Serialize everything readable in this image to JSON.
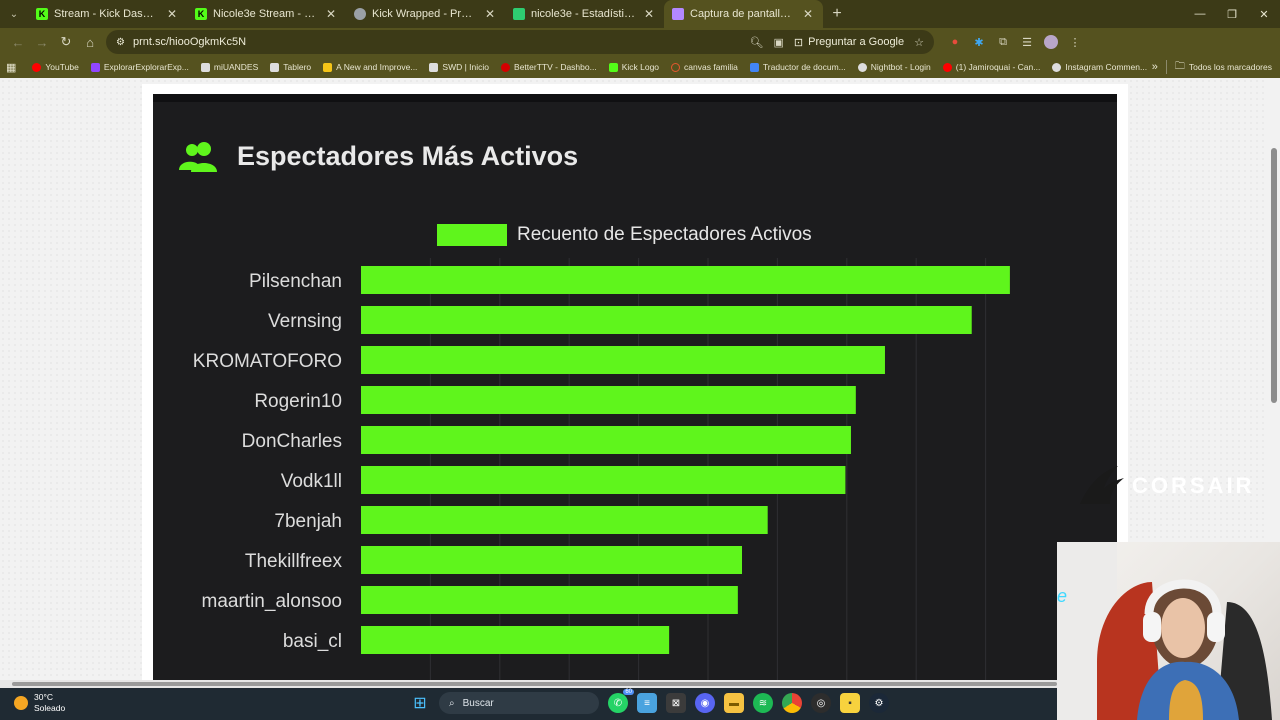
{
  "browser": {
    "tabs": [
      {
        "title": "Stream - Kick Dashboard",
        "favicon_color": "#53fc18",
        "active": false
      },
      {
        "title": "Nicole3e Stream - Watch Live on Kick",
        "favicon_color": "#53fc18",
        "active": false
      },
      {
        "title": "Kick Wrapped - Processing",
        "favicon_color": "#9aa0a6",
        "active": false
      },
      {
        "title": "nicole3e - Estadísticas de Kick",
        "favicon_color": "#2ecc71",
        "active": false
      },
      {
        "title": "Captura de pantalla por Lightshot",
        "favicon_color": "#b388ff",
        "active": true
      }
    ],
    "url": "prnt.sc/hiooOgkmKc5N",
    "ask_google": "Preguntar a Google",
    "bookmarks": [
      {
        "label": "YouTube",
        "color": "#ff0000"
      },
      {
        "label": "ExplorarExplorarExp...",
        "color": "#9146ff"
      },
      {
        "label": "miUANDES",
        "color": "#dddddd"
      },
      {
        "label": "Tablero",
        "color": "#dddddd"
      },
      {
        "label": "A New and Improve...",
        "color": "#f5c518"
      },
      {
        "label": "SWD | Inicio",
        "color": "#dddddd"
      },
      {
        "label": "BetterTTV - Dashbo...",
        "color": "#d50000"
      },
      {
        "label": "Kick Logo",
        "color": "#53fc18"
      },
      {
        "label": "canvas familia",
        "color": "#e4572e"
      },
      {
        "label": "Traductor de docum...",
        "color": "#4285f4"
      },
      {
        "label": "Nightbot - Login",
        "color": "#dddddd"
      },
      {
        "label": "(1) Jamiroquai - Can...",
        "color": "#ff0000"
      },
      {
        "label": "Instagram Commen...",
        "color": "#dddddd"
      }
    ],
    "all_bookmarks": "Todos los marcadores"
  },
  "screenshot": {
    "title": "Espectadores Más Activos"
  },
  "chart_data": {
    "type": "bar",
    "orientation": "horizontal",
    "title": "Espectadores Más Activos",
    "legend": "Recuento de Espectadores Activos",
    "legend_position": "top-center",
    "categories": [
      "Pilsenchan",
      "Vernsing",
      "KROMATOFORO",
      "Rogerin10",
      "DonCharles",
      "Vodk1ll",
      "7benjah",
      "Thekillfreex",
      "maartin_alonsoo",
      "basi_cl"
    ],
    "series": [
      {
        "values": [
          93.5,
          88,
          75.5,
          71.3,
          70.6,
          69.8,
          58.6,
          54.9,
          54.3,
          44.4
        ],
        "color": "#5ff51c"
      }
    ],
    "xlim": [
      0,
      100
    ],
    "grid": true
  },
  "overlay": {
    "brand": "CORSAIR"
  },
  "taskbar": {
    "temperature": "30°C",
    "condition": "Soleado",
    "search": "Buscar",
    "whatsapp_badge": "60"
  }
}
